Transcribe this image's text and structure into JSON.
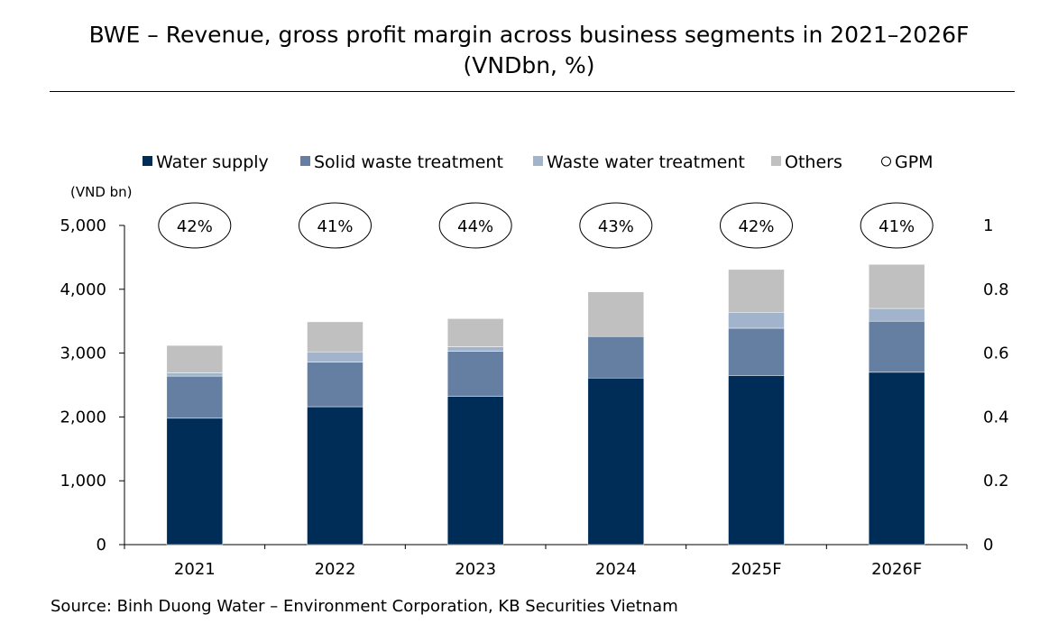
{
  "header": {
    "title": "BWE – Revenue, gross profit margin across business segments in 2021–2026F",
    "subtitle": "(VNDbn, %)"
  },
  "footer": {
    "source": "Source: Binh Duong Water – Environment Corporation, KB Securities Vietnam"
  },
  "chart_data": {
    "type": "bar",
    "stacked": true,
    "categories": [
      "2021",
      "2022",
      "2023",
      "2024",
      "2025F",
      "2026F"
    ],
    "series": [
      {
        "name": "Water supply",
        "color": "#002d58",
        "values": [
          1980,
          2160,
          2320,
          2610,
          2650,
          2700
        ]
      },
      {
        "name": "Solid waste treatment",
        "color": "#647fa1",
        "values": [
          660,
          700,
          710,
          650,
          740,
          800
        ]
      },
      {
        "name": "Waste water treatment",
        "color": "#a1b4cb",
        "values": [
          50,
          160,
          70,
          0,
          250,
          200
        ]
      },
      {
        "name": "Others",
        "color": "#c0c0c0",
        "values": [
          430,
          470,
          440,
          700,
          670,
          690
        ]
      }
    ],
    "gpm": {
      "name": "GPM",
      "labels": [
        "42%",
        "41%",
        "44%",
        "43%",
        "42%",
        "41%"
      ]
    },
    "y_left": {
      "label": "(VND bn)",
      "min": 0,
      "max": 5000,
      "ticks": [
        0,
        1000,
        2000,
        3000,
        4000,
        5000
      ],
      "tick_labels": [
        "0",
        "1,000",
        "2,000",
        "3,000",
        "4,000",
        "5,000"
      ]
    },
    "y_right": {
      "min": 0,
      "max": 1,
      "tick_labels": [
        "0",
        "0.2",
        "0.4",
        "0.6",
        "0.8",
        "1"
      ]
    },
    "legend_position": "top"
  }
}
